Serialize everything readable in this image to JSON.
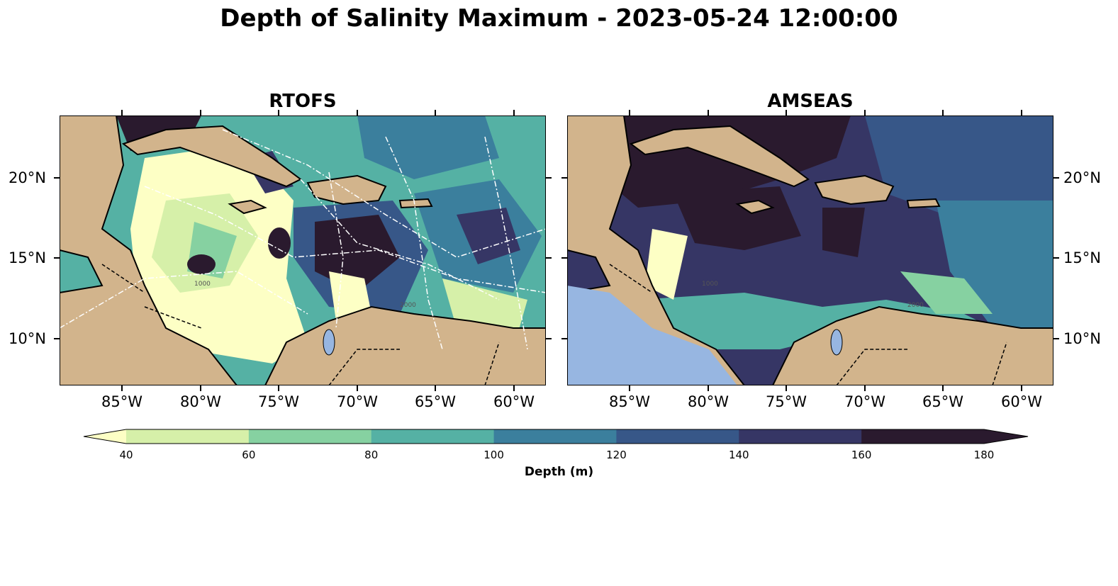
{
  "figure": {
    "title": "Depth of Salinity Maximum - 2023-05-24 12:00:00"
  },
  "panels": [
    {
      "title": "RTOFS"
    },
    {
      "title": "AMSEAS"
    }
  ],
  "axes": {
    "lon_ticks": [
      "85°W",
      "80°W",
      "75°W",
      "70°W",
      "65°W",
      "60°W"
    ],
    "lat_ticks": [
      "20°N",
      "15°N",
      "10°N"
    ],
    "lon_range": [
      -89,
      -58
    ],
    "lat_range": [
      7,
      24
    ]
  },
  "colorbar": {
    "label": "Depth (m)",
    "ticks": [
      "40",
      "60",
      "80",
      "100",
      "120",
      "140",
      "160",
      "180"
    ],
    "extend": "both"
  },
  "colors": {
    "land": "#d2b48c",
    "lakes": "#97b6e1",
    "bins": [
      "#fdffc5",
      "#d6f0a9",
      "#86d1a1",
      "#55b1a4",
      "#3b7f9d",
      "#375788",
      "#363665",
      "#2a1a2e"
    ]
  },
  "contour_labels": [
    "1000",
    "2000"
  ]
}
